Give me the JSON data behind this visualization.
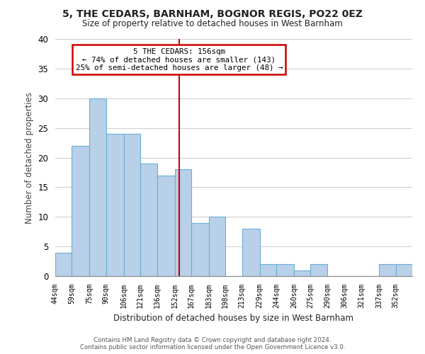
{
  "title": "5, THE CEDARS, BARNHAM, BOGNOR REGIS, PO22 0EZ",
  "subtitle": "Size of property relative to detached houses in West Barnham",
  "xlabel": "Distribution of detached houses by size in West Barnham",
  "ylabel": "Number of detached properties",
  "bin_labels": [
    "44sqm",
    "59sqm",
    "75sqm",
    "90sqm",
    "106sqm",
    "121sqm",
    "136sqm",
    "152sqm",
    "167sqm",
    "183sqm",
    "198sqm",
    "213sqm",
    "229sqm",
    "244sqm",
    "260sqm",
    "275sqm",
    "290sqm",
    "306sqm",
    "321sqm",
    "337sqm",
    "352sqm"
  ],
  "bin_edges": [
    44,
    59,
    75,
    90,
    106,
    121,
    136,
    152,
    167,
    183,
    198,
    213,
    229,
    244,
    260,
    275,
    290,
    306,
    321,
    337,
    352,
    367
  ],
  "counts": [
    4,
    22,
    30,
    24,
    24,
    19,
    17,
    18,
    9,
    10,
    0,
    8,
    2,
    2,
    1,
    2,
    0,
    0,
    0,
    2,
    2
  ],
  "bar_color": "#b8d0e8",
  "bar_edge_color": "#6aaed6",
  "property_line_x": 156,
  "property_line_color": "#cc0000",
  "annotation_line1": "5 THE CEDARS: 156sqm",
  "annotation_line2": "← 74% of detached houses are smaller (143)",
  "annotation_line3": "25% of semi-detached houses are larger (48) →",
  "annotation_box_color": "#ffffff",
  "annotation_box_edge": "#cc0000",
  "ylim": [
    0,
    40
  ],
  "yticks": [
    0,
    5,
    10,
    15,
    20,
    25,
    30,
    35,
    40
  ],
  "footer_line1": "Contains HM Land Registry data © Crown copyright and database right 2024.",
  "footer_line2": "Contains public sector information licensed under the Open Government Licence v3.0.",
  "background_color": "#ffffff",
  "grid_color": "#d0d0d0"
}
